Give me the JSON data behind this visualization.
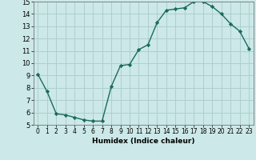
{
  "x": [
    0,
    1,
    2,
    3,
    4,
    5,
    6,
    7,
    8,
    9,
    10,
    11,
    12,
    13,
    14,
    15,
    16,
    17,
    18,
    19,
    20,
    21,
    22,
    23
  ],
  "y": [
    9.1,
    7.7,
    5.9,
    5.8,
    5.6,
    5.4,
    5.3,
    5.3,
    8.1,
    9.8,
    9.9,
    11.1,
    11.5,
    13.3,
    14.3,
    14.4,
    14.5,
    15.0,
    15.0,
    14.6,
    14.0,
    13.2,
    12.6,
    11.2
  ],
  "xlabel": "Humidex (Indice chaleur)",
  "ylim": [
    5,
    15
  ],
  "xlim": [
    -0.5,
    23.5
  ],
  "line_color": "#1a6b5a",
  "marker_color": "#1a6b5a",
  "bg_color": "#cce8e8",
  "grid_color": "#aacccc",
  "yticks": [
    5,
    6,
    7,
    8,
    9,
    10,
    11,
    12,
    13,
    14,
    15
  ],
  "xticks": [
    0,
    1,
    2,
    3,
    4,
    5,
    6,
    7,
    8,
    9,
    10,
    11,
    12,
    13,
    14,
    15,
    16,
    17,
    18,
    19,
    20,
    21,
    22,
    23
  ],
  "xtick_labels": [
    "0",
    "1",
    "2",
    "3",
    "4",
    "5",
    "6",
    "7",
    "8",
    "9",
    "10",
    "11",
    "12",
    "13",
    "14",
    "15",
    "16",
    "17",
    "18",
    "19",
    "20",
    "21",
    "22",
    "23"
  ],
  "xlabel_fontsize": 6.5,
  "tick_fontsize": 5.5,
  "ytick_fontsize": 6.0
}
